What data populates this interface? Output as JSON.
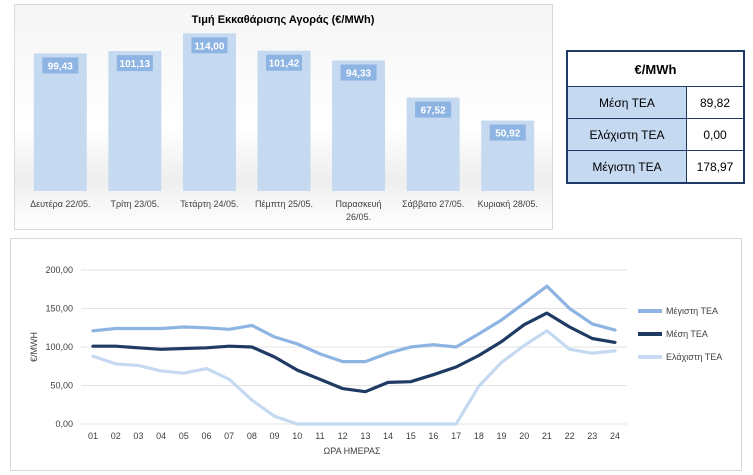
{
  "chart_data": [
    {
      "type": "bar",
      "title": "Τιμή Εκκαθάρισης Αγοράς (€/MWh)",
      "categories": [
        "Δευτέρα 22/05.",
        "Τρίτη 23/05.",
        "Τετάρτη 24/05.",
        "Πέμπτη 25/05.",
        "Παρασκευή 26/05.",
        "Σάββατο 27/05.",
        "Κυριακή 28/05."
      ],
      "category_lines": [
        [
          "Δευτέρα 22/05."
        ],
        [
          "Τρίτη 23/05."
        ],
        [
          "Τετάρτη 24/05."
        ],
        [
          "Πέμπτη 25/05."
        ],
        [
          "Παρασκευή",
          "26/05."
        ],
        [
          "Σάββατο 27/05."
        ],
        [
          "Κυριακή 28/05."
        ]
      ],
      "values": [
        99.43,
        101.13,
        114.0,
        101.42,
        94.33,
        67.52,
        50.92
      ],
      "value_labels": [
        "99,43",
        "101,13",
        "114,00",
        "101,42",
        "94,33",
        "67,52",
        "50,92"
      ],
      "ylim": [
        0,
        120
      ],
      "bar_color": "#c5d9f1",
      "label_color": "#8db4e2"
    },
    {
      "type": "line",
      "title": "",
      "xlabel": "ΩΡΑ ΗΜΕΡΑΣ",
      "ylabel": "€/MWH",
      "x": [
        "01",
        "02",
        "03",
        "04",
        "05",
        "06",
        "07",
        "08",
        "09",
        "10",
        "11",
        "12",
        "13",
        "14",
        "15",
        "16",
        "17",
        "18",
        "19",
        "20",
        "21",
        "22",
        "23",
        "24"
      ],
      "ylim": [
        0,
        200
      ],
      "yticks": [
        0,
        50,
        100,
        150,
        200
      ],
      "ytick_labels": [
        "0,00",
        "50,00",
        "100,00",
        "150,00",
        "200,00"
      ],
      "grid": true,
      "legend": "right",
      "series": [
        {
          "name": "Μέγιστη ΤΕΑ",
          "color": "#8db4e2",
          "values": [
            121,
            124,
            124,
            124,
            126,
            125,
            123,
            128,
            113,
            104,
            91,
            81,
            81,
            92,
            100,
            103,
            100,
            117,
            135,
            157,
            179,
            150,
            130,
            122
          ]
        },
        {
          "name": "Μέση ΤΕΑ",
          "color": "#1f3b63",
          "values": [
            101,
            101,
            99,
            97,
            98,
            99,
            101,
            100,
            87,
            70,
            58,
            46,
            42,
            54,
            55,
            64,
            74,
            89,
            107,
            129,
            144,
            126,
            111,
            106
          ]
        },
        {
          "name": "Ελάχιστη ΤΕΑ",
          "color": "#c5d9f1",
          "values": [
            88,
            78,
            76,
            69,
            66,
            72,
            58,
            31,
            10,
            0,
            0,
            0,
            0,
            0,
            0,
            0,
            0,
            49,
            80,
            102,
            121,
            97,
            92,
            95
          ]
        }
      ]
    }
  ],
  "summary_table": {
    "header": "€/MWh",
    "rows": [
      {
        "label": "Μέση ΤΕΑ",
        "value": "89,82"
      },
      {
        "label": "Ελάχιστη ΤΕΑ",
        "value": "0,00"
      },
      {
        "label": "Μέγιστη ΤΕΑ",
        "value": "178,97"
      }
    ]
  }
}
